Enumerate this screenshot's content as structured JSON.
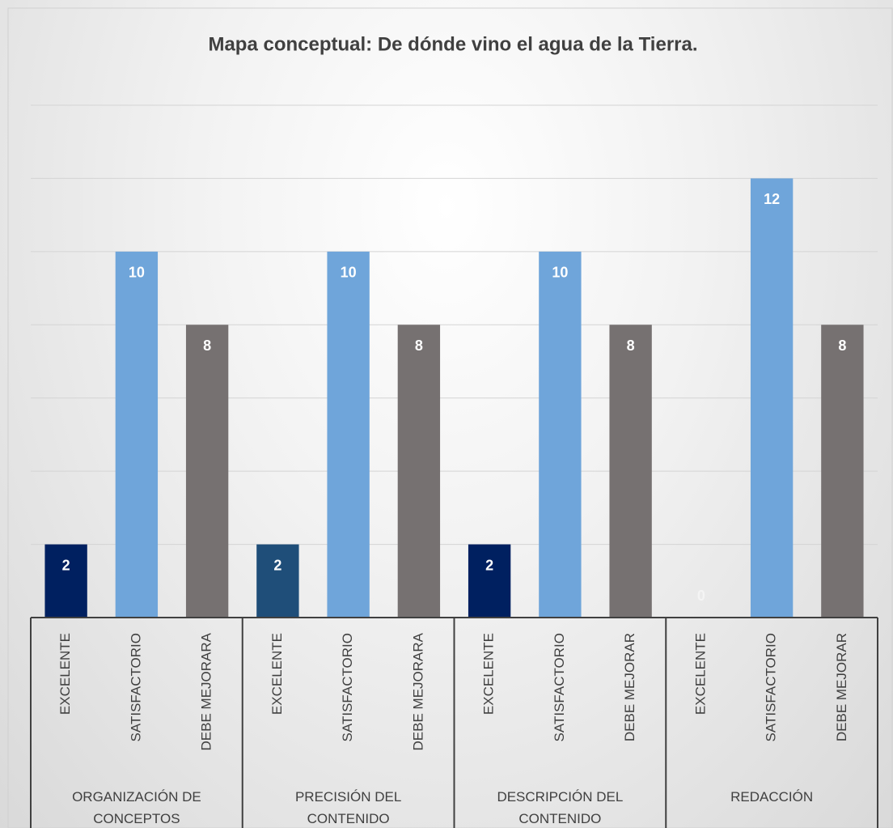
{
  "chart_data": {
    "type": "bar",
    "title": "Mapa conceptual: De dónde vino el agua de la Tierra.",
    "categories": [
      "EXCELENTE",
      "SATISFACTORIO",
      "DEBE MEJORARA",
      "EXCELENTE",
      "SATISFACTORIO",
      "DEBE MEJORARA",
      "EXCELENTE",
      "SATISFACTORIO",
      "DEBE MEJORAR",
      "EXCELENTE",
      "SATISFACTORIO",
      "DEBE MEJORAR"
    ],
    "groups": [
      "ORGANIZACIÓN DE CONCEPTOS",
      "PRECISIÓN DEL CONTENIDO",
      "DESCRIPCIÓN DEL CONTENIDO",
      "REDACCIÓN"
    ],
    "values": [
      2,
      10,
      8,
      2,
      10,
      8,
      2,
      10,
      8,
      0,
      12,
      8
    ],
    "colors": [
      "#002060",
      "#6fa5da",
      "#767171",
      "#1f4e79",
      "#6fa5da",
      "#767171",
      "#002060",
      "#6fa5da",
      "#767171",
      "#002060",
      "#6fa5da",
      "#767171"
    ],
    "label_color": "#ffffff",
    "ylim": [
      0,
      14
    ],
    "yticks": [
      0,
      2,
      4,
      6,
      8,
      10,
      12,
      14
    ],
    "grid": true
  }
}
